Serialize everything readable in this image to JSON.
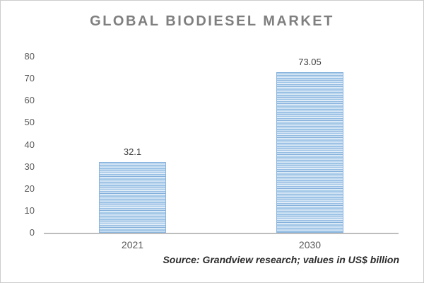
{
  "chart_data": {
    "type": "bar",
    "title": "GLOBAL BIODIESEL MARKET",
    "categories": [
      "2021",
      "2030"
    ],
    "values": [
      32.1,
      73.05
    ],
    "value_labels": [
      "32.1",
      "73.05"
    ],
    "xlabel": "",
    "ylabel": "",
    "ylim": [
      0,
      80
    ],
    "ytick_step": 10,
    "ytick_labels": [
      "0",
      "10",
      "20",
      "30",
      "40",
      "50",
      "60",
      "70",
      "80"
    ],
    "grid": false,
    "legend": false,
    "source_note": "Source: Grandview research; values in US$ billion",
    "colors": {
      "bar_base": "#9dc3e6",
      "bar_stripe_light": "#d9e9f6",
      "bar_border": "#8ab4de",
      "axis_line": "#bdbdbd",
      "tick_label": "#595959",
      "value_label": "#404040",
      "title": "#7f7f7f",
      "source_text": "#2b2b2b",
      "frame_border": "#cccccc",
      "background": "#ffffff"
    }
  }
}
